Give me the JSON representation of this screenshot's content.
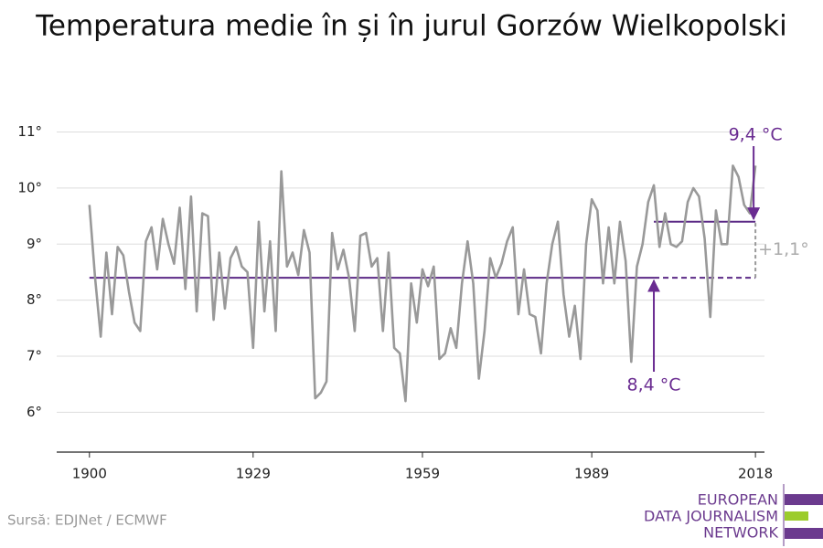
{
  "chart_data": {
    "type": "line",
    "title": "Temperatura medie în și în jurul Gorzów Wielkopolski",
    "source": "Sursă: EDJNet / ECMWF",
    "logo": [
      "EUROPEAN",
      "DATA JOURNALISM",
      "NETWORK"
    ],
    "x": [
      1900,
      1901,
      1902,
      1903,
      1904,
      1905,
      1906,
      1907,
      1908,
      1909,
      1910,
      1911,
      1912,
      1913,
      1914,
      1915,
      1916,
      1917,
      1918,
      1919,
      1920,
      1921,
      1922,
      1923,
      1924,
      1925,
      1926,
      1927,
      1928,
      1929,
      1930,
      1931,
      1932,
      1933,
      1934,
      1935,
      1936,
      1937,
      1938,
      1939,
      1940,
      1941,
      1942,
      1943,
      1944,
      1945,
      1946,
      1947,
      1948,
      1949,
      1950,
      1951,
      1952,
      1953,
      1954,
      1955,
      1956,
      1957,
      1958,
      1959,
      1960,
      1961,
      1962,
      1963,
      1964,
      1965,
      1966,
      1967,
      1968,
      1969,
      1970,
      1971,
      1972,
      1973,
      1974,
      1975,
      1976,
      1977,
      1978,
      1979,
      1980,
      1981,
      1982,
      1983,
      1984,
      1985,
      1986,
      1987,
      1988,
      1989,
      1990,
      1991,
      1992,
      1993,
      1994,
      1995,
      1996,
      1997,
      1998,
      1999,
      2000,
      2001,
      2002,
      2003,
      2004,
      2005,
      2006,
      2007,
      2008,
      2009,
      2010,
      2011,
      2012,
      2013,
      2014,
      2015,
      2016,
      2017,
      2018
    ],
    "series": [
      {
        "color": "#999999",
        "values": [
          9.7,
          8.4,
          7.35,
          8.85,
          7.75,
          8.95,
          8.8,
          8.15,
          7.6,
          7.45,
          9.05,
          9.3,
          8.55,
          9.45,
          9.0,
          8.65,
          9.65,
          8.2,
          9.85,
          7.8,
          9.55,
          9.5,
          7.65,
          8.85,
          7.85,
          8.75,
          8.95,
          8.6,
          8.5,
          7.15,
          9.4,
          7.8,
          9.05,
          7.45,
          10.3,
          8.6,
          8.85,
          8.45,
          9.25,
          8.85,
          6.25,
          6.35,
          6.55,
          9.2,
          8.55,
          8.9,
          8.4,
          7.45,
          9.15,
          9.2,
          8.6,
          8.75,
          7.45,
          8.85,
          7.15,
          7.05,
          6.2,
          8.3,
          7.6,
          8.55,
          8.25,
          8.6,
          6.95,
          7.05,
          7.5,
          7.15,
          8.3,
          9.05,
          8.3,
          6.6,
          7.45,
          8.75,
          8.4,
          8.65,
          9.05,
          9.3,
          7.75,
          8.55,
          7.75,
          7.7,
          7.05,
          8.3,
          9.0,
          9.4,
          8.1,
          7.35,
          7.9,
          6.95,
          9.0,
          9.8,
          9.6,
          8.3,
          9.3,
          8.3,
          9.4,
          8.7,
          6.9,
          8.6,
          9.0,
          9.75,
          10.05,
          8.95,
          9.55,
          9.0,
          8.95,
          9.05,
          9.75,
          10.0,
          9.85,
          9.1,
          7.7,
          9.6,
          9.0,
          9.0,
          10.4,
          10.2,
          9.7,
          9.55,
          10.4
        ]
      }
    ],
    "reference_lines": [
      {
        "value": 8.4,
        "label": "8,4 °C",
        "x": [
          1900,
          2018
        ],
        "color": "#5b2a86"
      },
      {
        "value": 9.4,
        "label": "9,4 °C",
        "x": [
          2000,
          2018
        ],
        "color": "#5b2a86"
      }
    ],
    "difference_label": "+1,1°",
    "xlim": [
      1894.2,
      2019.6
    ],
    "ylim": [
      5.29,
      11.4
    ],
    "xticks": [
      1900,
      1929,
      1959,
      1989,
      2018
    ],
    "yticks": [
      {
        "value": 6,
        "label": "6°"
      },
      {
        "value": 7,
        "label": "7°"
      },
      {
        "value": 8,
        "label": "8°"
      },
      {
        "value": 9,
        "label": "9°"
      },
      {
        "value": 10,
        "label": "10°"
      },
      {
        "value": 11,
        "label": "11°"
      }
    ],
    "grid": true
  }
}
